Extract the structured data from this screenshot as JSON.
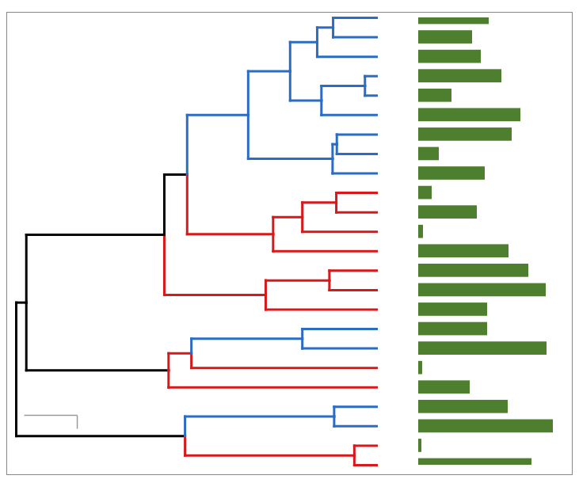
{
  "chart_data": {
    "type": "tree_bar",
    "scale_bar": 1,
    "bar_color": "#4e7f2e",
    "xlim": [
      0,
      190
    ],
    "tick_labels": false,
    "tree": {
      "depth": 0,
      "color": "#000000",
      "children": [
        {
          "depth": 3.18,
          "children": [
            {
              "depth": 6.37,
              "color": "#d7191c",
              "children": [
                {
                  "depth": 6.79,
                  "value": 143
                },
                {
                  "depth": 6.79,
                  "value": 4
                }
              ]
            },
            {
              "depth": 5.99,
              "color": "#2b6cc4",
              "children": [
                {
                  "depth": 6.79,
                  "value": 170
                },
                {
                  "depth": 6.79,
                  "value": 113
                }
              ]
            }
          ]
        },
        {
          "depth": 0.19,
          "children": [
            {
              "depth": 2.87,
              "children": [
                {
                  "depth": 6.79,
                  "color": "#d7191c",
                  "value": 65
                },
                {
                  "depth": 3.3,
                  "color": "#d7191c",
                  "children": [
                    {
                      "depth": 6.79,
                      "value": 5
                    },
                    {
                      "depth": 5.39,
                      "color": "#2b6cc4",
                      "children": [
                        {
                          "depth": 6.79,
                          "value": 162
                        },
                        {
                          "depth": 6.79,
                          "value": 87
                        }
                      ]
                    }
                  ]
                }
              ]
            },
            {
              "depth": 2.79,
              "children": [
                {
                  "depth": 4.7,
                  "color": "#d7191c",
                  "children": [
                    {
                      "depth": 6.79,
                      "value": 87
                    },
                    {
                      "depth": 5.9,
                      "children": [
                        {
                          "depth": 6.79,
                          "value": 161
                        },
                        {
                          "depth": 6.79,
                          "value": 139
                        }
                      ]
                    }
                  ]
                },
                {
                  "depth": 3.22,
                  "children": [
                    {
                      "depth": 4.84,
                      "color": "#d7191c",
                      "children": [
                        {
                          "depth": 6.79,
                          "value": 114
                        },
                        {
                          "depth": 5.39,
                          "children": [
                            {
                              "depth": 6.79,
                              "value": 6
                            },
                            {
                              "depth": 6.03,
                              "children": [
                                {
                                  "depth": 6.79,
                                  "value": 74
                                },
                                {
                                  "depth": 6.79,
                                  "value": 17
                                }
                              ]
                            }
                          ]
                        }
                      ]
                    },
                    {
                      "depth": 4.37,
                      "color": "#2b6cc4",
                      "children": [
                        {
                          "depth": 5.96,
                          "children": [
                            {
                              "depth": 6.79,
                              "value": 84
                            },
                            {
                              "depth": 6.04,
                              "children": [
                                {
                                  "depth": 6.79,
                                  "value": 26
                                },
                                {
                                  "depth": 6.79,
                                  "value": 118
                                }
                              ]
                            }
                          ]
                        },
                        {
                          "depth": 5.16,
                          "children": [
                            {
                              "depth": 5.75,
                              "children": [
                                {
                                  "depth": 6.79,
                                  "value": 129
                                },
                                {
                                  "depth": 6.57,
                                  "children": [
                                    {
                                      "depth": 6.79,
                                      "value": 42
                                    },
                                    {
                                      "depth": 6.79,
                                      "value": 105
                                    }
                                  ]
                                }
                              ]
                            },
                            {
                              "depth": 5.67,
                              "children": [
                                {
                                  "depth": 6.79,
                                  "value": 79
                                },
                                {
                                  "depth": 5.97,
                                  "children": [
                                    {
                                      "depth": 6.79,
                                      "value": 68
                                    },
                                    {
                                      "depth": 6.79,
                                      "value": 89
                                    }
                                  ]
                                }
                              ]
                            }
                          ]
                        }
                      ]
                    }
                  ]
                }
              ]
            }
          ]
        }
      ]
    }
  }
}
